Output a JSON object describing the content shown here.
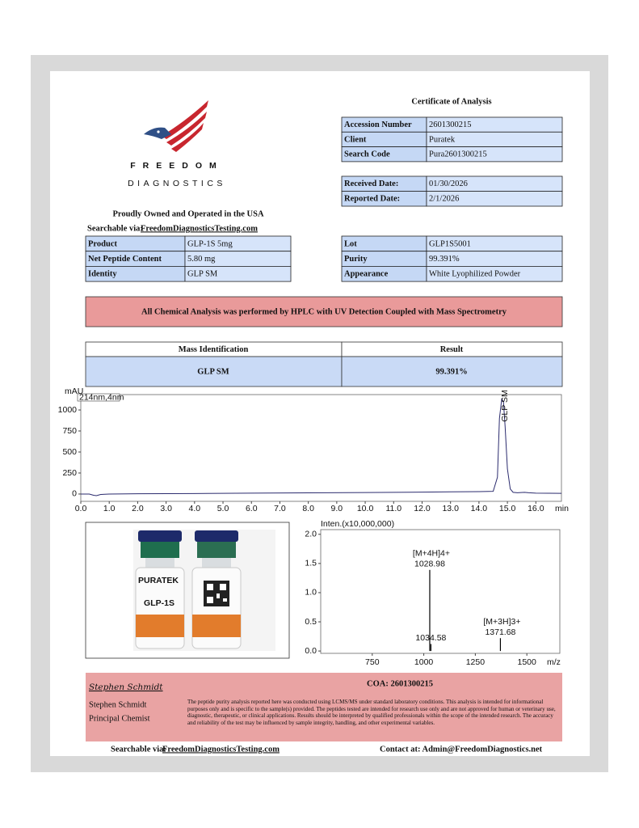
{
  "logo": {
    "brand": "FREEDOM",
    "subbrand": "DIAGNOSTICS",
    "tagline": "Proudly Owned and Operated in the USA"
  },
  "header": {
    "title": "Certificate of Analysis"
  },
  "searchable_top": {
    "label": "Searchable via:",
    "link": "FreedomDiagnosticsTesting.com"
  },
  "sample_table": {
    "rows": [
      [
        "Accession Number",
        "2601300215"
      ],
      [
        "Client",
        "Puratek"
      ],
      [
        "Search Code",
        "Pura2601300215"
      ]
    ]
  },
  "date_table": {
    "rows": [
      [
        "Received Date:",
        "01/30/2026"
      ],
      [
        "Reported Date:",
        "2/1/2026"
      ]
    ]
  },
  "product_table": {
    "rows": [
      [
        "Product",
        "GLP-1S 5mg"
      ],
      [
        "Net Peptide Content",
        "5.80 mg"
      ],
      [
        "Identity",
        "GLP SM"
      ]
    ]
  },
  "lot_table": {
    "rows": [
      [
        "Lot",
        "GLP1S5001"
      ],
      [
        "Purity",
        "99.391%"
      ],
      [
        "Appearance",
        "White Lyophilized Powder"
      ]
    ]
  },
  "method_banner": "All Chemical Analysis was performed by HPLC with UV Detection Coupled with Mass Spectrometry",
  "result_table": {
    "header": [
      "Mass Identification",
      "Result"
    ],
    "row": [
      "GLP SM",
      "99.391%"
    ]
  },
  "chromatogram": {
    "type": "line",
    "y_label": "mAU",
    "x_label": "min",
    "channel": "214nm,4nm",
    "peak_label": "GLP SM",
    "color": "#2b2b6e",
    "x": [
      0,
      0.3,
      0.45,
      0.55,
      0.7,
      1,
      2,
      4,
      6,
      8,
      10,
      12,
      13,
      14,
      14.5,
      14.65,
      14.72,
      14.8,
      14.86,
      14.92,
      15.0,
      15.1,
      15.2,
      15.35,
      15.6,
      15.75,
      16,
      16.9
    ],
    "values": [
      0,
      0,
      -15,
      -20,
      -5,
      0,
      3,
      6,
      10,
      14,
      18,
      22,
      26,
      28,
      32,
      200,
      900,
      1130,
      1100,
      800,
      300,
      60,
      20,
      15,
      20,
      15,
      10,
      8
    ],
    "xlim": [
      0,
      16.9
    ],
    "ylim": [
      -87,
      1183
    ],
    "xticks": [
      {
        "value": 0,
        "label": "0.0"
      },
      {
        "value": 1,
        "label": "1.0"
      },
      {
        "value": 2,
        "label": "2.0"
      },
      {
        "value": 3,
        "label": "3.0"
      },
      {
        "value": 4,
        "label": "4.0"
      },
      {
        "value": 5,
        "label": "5.0"
      },
      {
        "value": 6,
        "label": "6.0"
      },
      {
        "value": 7,
        "label": "7.0"
      },
      {
        "value": 8,
        "label": "8.0"
      },
      {
        "value": 9,
        "label": "9.0"
      },
      {
        "value": 10,
        "label": "10.0"
      },
      {
        "value": 11,
        "label": "11.0"
      },
      {
        "value": 12,
        "label": "12.0"
      },
      {
        "value": 13,
        "label": "13.0"
      },
      {
        "value": 14,
        "label": "14.0"
      },
      {
        "value": 15,
        "label": "15.0"
      },
      {
        "value": 16,
        "label": "16.0"
      }
    ],
    "yticks": [
      0,
      250,
      500,
      750,
      1000
    ]
  },
  "vial_photo": {
    "brand": "PURATEK",
    "product": "GLP-1S"
  },
  "mass_spectrum": {
    "type": "stick",
    "y_label": "Inten.(x10,000,000)",
    "x_label": "m/z",
    "color": "#000000",
    "x": [
      1028.98,
      1034.58,
      1371.68
    ],
    "values": [
      1.39,
      0.12,
      0.22
    ],
    "ion_labels": [
      "[M+4H]4+",
      null,
      "[M+3H]3+"
    ],
    "xlim": [
      500,
      1660
    ],
    "ylim": [
      -0.04,
      2.08
    ],
    "xticks": [
      750,
      1000,
      1250,
      1500
    ],
    "yticks": [
      {
        "value": 0,
        "label": "0.0"
      },
      {
        "value": 0.5,
        "label": "0.5"
      },
      {
        "value": 1,
        "label": "1.0"
      },
      {
        "value": 1.5,
        "label": "1.5"
      },
      {
        "value": 2,
        "label": "2.0"
      }
    ]
  },
  "footer": {
    "signature": "Stephen Schmidt",
    "coa": "COA: 2601300215",
    "name": "Stephen Schmidt",
    "role": "Principal Chemist",
    "disclaimer": "The peptide purity analysis reported here was conducted using LCMS/MS under standard laboratory conditions. This analysis is intended for informational purposes only and is specific to the sample(s) provided. The peptides tested are intended for research use only and are not approved for human or veterinary use, diagnostic, therapeutic, or clinical applications. Results should be interpreted by qualified professionals within the scope of the intended research. The accuracy and reliability of the test may be influenced by sample integrity, handling, and other experimental variables.",
    "searchable_label": "Searchable via:",
    "searchable_link": "FreedomDiagnosticsTesting.com",
    "contact": "Contact at: Admin@FreedomDiagnostics.net"
  }
}
